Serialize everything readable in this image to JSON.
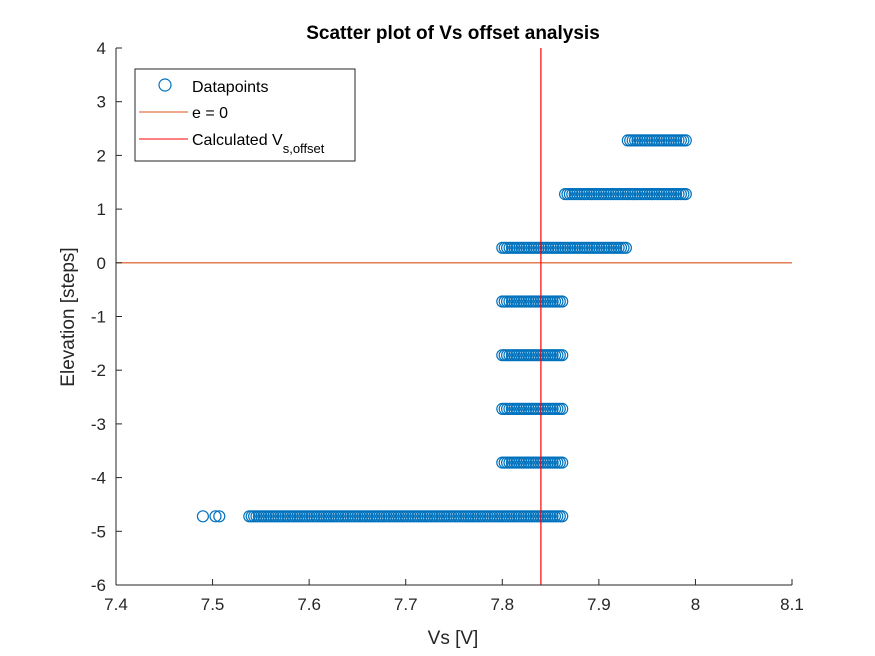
{
  "chart_data": {
    "type": "scatter",
    "title": "Scatter plot of Vs offset analysis",
    "xlabel": "Vs [V]",
    "ylabel": "Elevation [steps]",
    "xlim": [
      7.4,
      8.1
    ],
    "ylim": [
      -6,
      4
    ],
    "xticks": [
      "7.4",
      "7.5",
      "7.6",
      "7.7",
      "7.8",
      "7.9",
      "8",
      "8.1"
    ],
    "yticks": [
      "-6",
      "-5",
      "-4",
      "-3",
      "-2",
      "-1",
      "0",
      "1",
      "2",
      "3",
      "4"
    ],
    "grid": false,
    "legend_position": "top-left",
    "colors": {
      "points": "#0072BD",
      "zero_line": "#D95319",
      "offset_line": "#FF0000"
    },
    "series": [
      {
        "name": "Datapoints",
        "marker": "open-circle",
        "clusters": [
          {
            "y": 2.28,
            "x_min": 7.93,
            "x_max": 7.99
          },
          {
            "y": 1.28,
            "x_min": 7.865,
            "x_max": 7.99
          },
          {
            "y": 0.28,
            "x_min": 7.8,
            "x_max": 7.928
          },
          {
            "y": -0.72,
            "x_min": 7.8,
            "x_max": 7.862
          },
          {
            "y": -1.72,
            "x_min": 7.8,
            "x_max": 7.862
          },
          {
            "y": -2.72,
            "x_min": 7.8,
            "x_max": 7.862
          },
          {
            "y": -3.72,
            "x_min": 7.8,
            "x_max": 7.862
          },
          {
            "y": -4.72,
            "x_min": 7.538,
            "x_max": 7.862
          }
        ],
        "extra_points": [
          {
            "x": 7.49,
            "y": -4.72
          },
          {
            "x": 7.503,
            "y": -4.72
          },
          {
            "x": 7.507,
            "y": -4.72
          }
        ]
      },
      {
        "name": "e = 0",
        "line": "horizontal",
        "value": 0
      },
      {
        "name": "Calculated V",
        "subscript": "s,offset",
        "line": "vertical",
        "value": 7.84
      }
    ]
  }
}
